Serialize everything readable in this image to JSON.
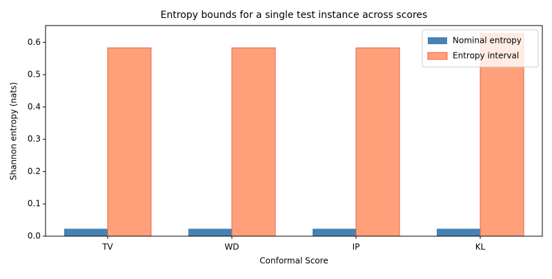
{
  "chart_data": {
    "type": "bar",
    "title": "Entropy bounds for a single test instance across scores",
    "xlabel": "Conformal Score",
    "ylabel": "Shannon entropy (nats)",
    "categories": [
      "TV",
      "WD",
      "IP",
      "KL"
    ],
    "series": [
      {
        "name": "Nominal entropy",
        "color": "#4682b4",
        "values": [
          0.023,
          0.023,
          0.023,
          0.023
        ]
      },
      {
        "name": "Entropy interval",
        "color": "#ffa07a",
        "edgecolor": "#e8604c",
        "values": [
          0.583,
          0.583,
          0.583,
          0.627
        ]
      }
    ],
    "ylim": [
      0,
      0.652
    ],
    "yticks": [
      {
        "value": 0,
        "label": "0.0"
      },
      0.1,
      0.2,
      0.3,
      0.4,
      0.5,
      0.6
    ],
    "legend": "upper right"
  }
}
